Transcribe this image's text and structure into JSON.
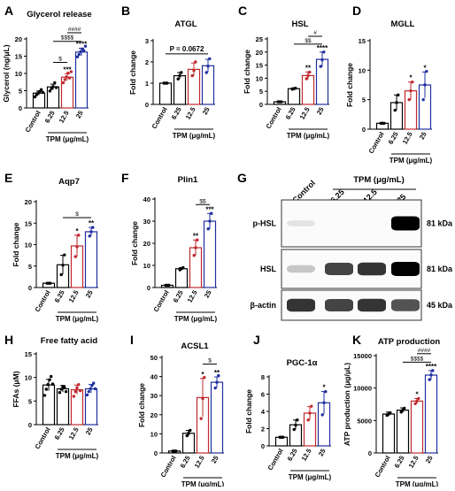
{
  "colors": {
    "control": "#000000",
    "c6": "#000000",
    "c12": "#c0282d",
    "c25": "#1f2fa0"
  },
  "shared": {
    "categories": [
      "Control",
      "6.25",
      "12.5",
      "25"
    ],
    "tpm_label": "TPM (μg/mL)"
  },
  "chart_data": [
    {
      "id": "A",
      "type": "bar",
      "panel_letter": "A",
      "title": "Glycerol release",
      "ylabel": "Glycerol (ng/μL)",
      "ylim": [
        0,
        20
      ],
      "yticks": [
        0,
        5,
        10,
        15,
        20
      ],
      "categories": [
        "Control",
        "6.25",
        "12.5",
        "25"
      ],
      "values": [
        4.3,
        6.1,
        8.9,
        16.2
      ],
      "errors": [
        0.6,
        0.8,
        1.0,
        1.1
      ],
      "points": [
        [
          3.2,
          3.8,
          4.3,
          4.8,
          5.3,
          4.5
        ],
        [
          4.9,
          5.6,
          6.2,
          7.3,
          5.9
        ],
        [
          7.3,
          8.2,
          9.0,
          10.1,
          8.7,
          10.5
        ],
        [
          14.8,
          15.5,
          16.3,
          17.1,
          16.6,
          17.9
        ]
      ],
      "stars": [
        "",
        "",
        "***",
        "****"
      ],
      "brackets": [
        {
          "from": 1,
          "to": 2,
          "y": 13.2,
          "label": "$"
        },
        {
          "from": 1,
          "to": 3,
          "y": 19.3,
          "label": "$$$$"
        },
        {
          "from": 2,
          "to": 3,
          "y": 21.8,
          "label": "####"
        }
      ],
      "show_xlabel": true
    },
    {
      "id": "B",
      "type": "bar",
      "panel_letter": "B",
      "title": "ATGL",
      "ylabel": "Fold change",
      "ylim": [
        0,
        3
      ],
      "yticks": [
        0,
        1,
        2,
        3
      ],
      "categories": [
        "Control",
        "6.25",
        "12.5",
        "25"
      ],
      "values": [
        1.0,
        1.35,
        1.65,
        1.82
      ],
      "errors": [
        0.03,
        0.15,
        0.3,
        0.3
      ],
      "points": [
        [
          1.0,
          1.0,
          1.0
        ],
        [
          1.2,
          1.35,
          1.5
        ],
        [
          1.35,
          1.6,
          2.0
        ],
        [
          1.5,
          1.8,
          2.15
        ]
      ],
      "stars": [
        "",
        "",
        "",
        ""
      ],
      "brackets": [
        {
          "from": 0,
          "to": 3,
          "y": 2.38,
          "label": "P = 0.0672"
        }
      ],
      "show_xlabel": true
    },
    {
      "id": "C",
      "type": "bar",
      "panel_letter": "C",
      "title": "HSL",
      "ylabel": "Fold change",
      "ylim": [
        0,
        25
      ],
      "yticks": [
        0,
        5,
        10,
        15,
        20,
        25
      ],
      "categories": [
        "Control",
        "6.25",
        "12.5",
        "25"
      ],
      "values": [
        1.0,
        6.0,
        11.0,
        17.2
      ],
      "errors": [
        0.1,
        0.3,
        1.4,
        2.8
      ],
      "points": [
        [
          1.0,
          1.0,
          1.0
        ],
        [
          5.8,
          6.0,
          6.2
        ],
        [
          9.8,
          11.0,
          12.3
        ],
        [
          14.5,
          17.0,
          20.0
        ]
      ],
      "stars": [
        "",
        "",
        "**",
        "****"
      ],
      "brackets": [
        {
          "from": 1,
          "to": 3,
          "y": 23.0,
          "label": "$$"
        },
        {
          "from": 2,
          "to": 3,
          "y": 26.0,
          "label": "#"
        }
      ],
      "show_xlabel": true
    },
    {
      "id": "D",
      "type": "bar",
      "panel_letter": "D",
      "title": "MGLL",
      "ylabel": "Fold change",
      "ylim": [
        0,
        15
      ],
      "yticks": [
        0,
        5,
        10,
        15
      ],
      "categories": [
        "Control",
        "6.25",
        "12.5",
        "25"
      ],
      "values": [
        1.0,
        4.5,
        6.5,
        7.5
      ],
      "errors": [
        0.05,
        1.3,
        1.5,
        2.2
      ],
      "points": [
        [
          1.0,
          1.0,
          1.0
        ],
        [
          3.2,
          4.5,
          5.8
        ],
        [
          5.0,
          6.5,
          8.0
        ],
        [
          5.0,
          7.5,
          9.8
        ]
      ],
      "stars": [
        "",
        "",
        "*",
        "*"
      ],
      "brackets": [],
      "show_xlabel": true
    },
    {
      "id": "E",
      "type": "bar",
      "panel_letter": "E",
      "title": "Aqp7",
      "ylabel": "Fold change",
      "ylim": [
        0,
        20
      ],
      "yticks": [
        0,
        5,
        10,
        15,
        20
      ],
      "categories": [
        "Control",
        "6.25",
        "12.5",
        "25"
      ],
      "values": [
        1.0,
        5.3,
        9.7,
        13.0
      ],
      "errors": [
        0.05,
        2.2,
        2.5,
        1.0
      ],
      "points": [
        [
          1.0,
          1.0,
          1.0
        ],
        [
          3.0,
          5.2,
          7.6
        ],
        [
          7.2,
          9.5,
          12.2
        ],
        [
          12.0,
          13.0,
          14.0
        ]
      ],
      "stars": [
        "",
        "",
        "*",
        "**"
      ],
      "brackets": [
        {
          "from": 1,
          "to": 3,
          "y": 16.3,
          "label": "$"
        }
      ],
      "show_xlabel": true
    },
    {
      "id": "F",
      "type": "bar",
      "panel_letter": "F",
      "title": "Plin1",
      "ylabel": "Fold change",
      "ylim": [
        0,
        40
      ],
      "yticks": [
        0,
        10,
        20,
        30,
        40
      ],
      "categories": [
        "Control",
        "6.25",
        "12.5",
        "25"
      ],
      "values": [
        1.0,
        8.5,
        18.0,
        30.0
      ],
      "errors": [
        0.1,
        0.5,
        3.5,
        3.5
      ],
      "points": [
        [
          1.0,
          1.0,
          1.0
        ],
        [
          8.0,
          8.5,
          9.0
        ],
        [
          14.5,
          18.0,
          21.5
        ],
        [
          26.5,
          30.0,
          33.5
        ]
      ],
      "stars": [
        "",
        "",
        "**",
        "***"
      ],
      "brackets": [
        {
          "from": 2,
          "to": 3,
          "y": 37.5,
          "label": "$$"
        }
      ],
      "show_xlabel": true
    },
    {
      "id": "H",
      "type": "bar",
      "panel_letter": "H",
      "title": "Free fatty acid",
      "ylabel": "FFAs (μM)",
      "ylim": [
        0,
        15
      ],
      "yticks": [
        0,
        5,
        10,
        15
      ],
      "categories": [
        "Control",
        "6.25",
        "12.5",
        "25"
      ],
      "values": [
        8.4,
        7.6,
        7.4,
        7.6
      ],
      "errors": [
        1.2,
        0.7,
        1.0,
        0.9
      ],
      "points": [
        [
          6.2,
          7.5,
          8.5,
          9.5,
          10.2,
          8.6
        ],
        [
          6.8,
          7.5,
          8.1,
          7.9,
          7.0
        ],
        [
          6.0,
          7.0,
          7.8,
          8.5,
          7.2
        ],
        [
          6.3,
          7.0,
          7.6,
          8.3,
          8.8,
          7.6
        ]
      ],
      "stars": [
        "",
        "",
        "",
        ""
      ],
      "brackets": [],
      "show_xlabel": true
    },
    {
      "id": "I",
      "type": "bar",
      "panel_letter": "I",
      "title": "ACSL1",
      "ylabel": "Fold change",
      "ylim": [
        0,
        50
      ],
      "yticks": [
        0,
        10,
        20,
        30,
        40,
        50
      ],
      "categories": [
        "Control",
        "6.25",
        "12.5",
        "25"
      ],
      "values": [
        1.0,
        10.3,
        29.0,
        37.0
      ],
      "errors": [
        0.1,
        1.5,
        10.0,
        2.8
      ],
      "points": [
        [
          1.0,
          1.0,
          1.0
        ],
        [
          9.0,
          10.3,
          11.8
        ],
        [
          18.0,
          28.5,
          39.5
        ],
        [
          34.0,
          37.0,
          40.5
        ]
      ],
      "stars": [
        "",
        "",
        "*",
        "**"
      ],
      "brackets": [
        {
          "from": 2,
          "to": 3,
          "y": 46.5,
          "label": "$"
        }
      ],
      "show_xlabel": true
    },
    {
      "id": "J",
      "type": "bar",
      "panel_letter": "J",
      "title": "PGC-1α",
      "ylabel": "Fold change",
      "ylim": [
        0,
        8
      ],
      "yticks": [
        0,
        2,
        4,
        6,
        8
      ],
      "categories": [
        "Control",
        "6.25",
        "12.5",
        "25"
      ],
      "values": [
        1.0,
        2.45,
        3.8,
        5.0
      ],
      "errors": [
        0.05,
        0.55,
        0.75,
        1.3
      ],
      "points": [
        [
          1.0,
          1.0,
          1.0
        ],
        [
          1.9,
          2.4,
          3.0
        ],
        [
          3.0,
          3.8,
          4.6
        ],
        [
          3.6,
          5.0,
          6.3
        ]
      ],
      "stars": [
        "",
        "",
        "",
        "*"
      ],
      "brackets": [],
      "show_xlabel": true
    },
    {
      "id": "K",
      "type": "bar",
      "panel_letter": "K",
      "title": "ATP production",
      "ylabel": "ATP production (μg/μL)",
      "ylim": [
        0,
        15000
      ],
      "yticks": [
        0,
        5000,
        10000,
        15000
      ],
      "categories": [
        "Control",
        "6.25",
        "12.5",
        "25"
      ],
      "values": [
        6000,
        6600,
        8000,
        12000
      ],
      "errors": [
        300,
        350,
        400,
        700
      ],
      "points": [
        [
          5800,
          6000,
          6200
        ],
        [
          6300,
          6600,
          6900
        ],
        [
          7600,
          8000,
          8400
        ],
        [
          11300,
          12000,
          12700
        ]
      ],
      "stars": [
        "",
        "",
        "*",
        "****"
      ],
      "brackets": [
        {
          "from": 1,
          "to": 3,
          "y": 14000,
          "label": "$$$$"
        },
        {
          "from": 2,
          "to": 3,
          "y": 15300,
          "label": "####"
        }
      ],
      "show_xlabel": true
    }
  ],
  "blot": {
    "panel_letter": "G",
    "header": "TPM (μg/mL)",
    "lane_labels": [
      "Control",
      "6.25",
      "12.5",
      "25"
    ],
    "rows": [
      {
        "label": "p-HSL",
        "kda": "81 kDa",
        "intensities": [
          0.05,
          0.0,
          0.0,
          1.0
        ]
      },
      {
        "label": "HSL",
        "kda": "81 kDa",
        "intensities": [
          0.25,
          0.8,
          0.85,
          1.0
        ]
      },
      {
        "label": "β-actin",
        "kda": "45 kDa",
        "intensities": [
          0.85,
          0.8,
          0.85,
          0.75
        ]
      }
    ]
  }
}
